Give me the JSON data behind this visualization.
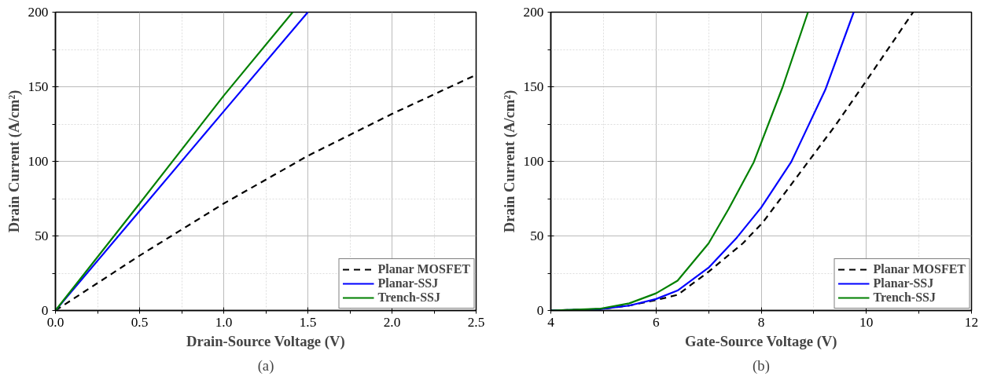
{
  "chart_data": [
    {
      "type": "line",
      "xlabel": "Drain-Source Voltage (V)",
      "ylabel": "Drain Current (A/cm²)",
      "annotations": [
        "(a)"
      ],
      "grid": true,
      "legend": "bottom right",
      "xlim": [
        0,
        2.5
      ],
      "xticks": [
        {
          "value": 0,
          "label": "0.0"
        },
        0.5,
        {
          "value": 1,
          "label": "1.0"
        },
        1.5,
        {
          "value": 2,
          "label": "2.0"
        },
        2.5
      ],
      "ylim": [
        0,
        200
      ],
      "yticks": [
        0,
        50,
        100,
        150,
        200
      ],
      "series": [
        {
          "name": "Planar MOSFET",
          "color": "#000000",
          "line_style": "dashed",
          "x": [
            0,
            0.5,
            1.0,
            1.5,
            2.0,
            2.5
          ],
          "values": [
            0,
            36.8,
            71.7,
            103.7,
            131.8,
            158
          ]
        },
        {
          "name": "Planar-SSJ",
          "color": "#0000ff",
          "line_style": "solid",
          "x": [
            0,
            0.5,
            1.0,
            1.5
          ],
          "values": [
            0,
            66.7,
            133.5,
            200
          ]
        },
        {
          "name": "Trench-SSJ",
          "color": "#008000",
          "line_style": "solid",
          "x": [
            0,
            0.5,
            1.0,
            1.41
          ],
          "values": [
            0,
            71.7,
            144,
            200
          ]
        }
      ]
    },
    {
      "type": "line",
      "xlabel": "Gate-Source Voltage (V)",
      "ylabel": "Drain Current (A/cm²)",
      "annotations": [
        "(b)"
      ],
      "grid": true,
      "legend": "bottom right",
      "xlim": [
        4,
        12
      ],
      "xticks": [
        4,
        6,
        8,
        10,
        12
      ],
      "ylim": [
        0,
        200
      ],
      "yticks": [
        0,
        50,
        100,
        150,
        200
      ],
      "series": [
        {
          "name": "Planar MOSFET",
          "color": "#000000",
          "line_style": "dashed",
          "x": [
            4.0,
            4.95,
            5.49,
            6.0,
            6.41,
            7.0,
            7.65,
            8.03,
            8.89,
            9.43,
            10.0,
            10.89
          ],
          "values": [
            0,
            1.0,
            3.3,
            7,
            10.5,
            26,
            45,
            59,
            99.5,
            125,
            154,
            200
          ]
        },
        {
          "name": "Planar-SSJ",
          "color": "#0000ff",
          "line_style": "solid",
          "x": [
            4.0,
            4.95,
            5.49,
            6.0,
            6.41,
            7.0,
            7.54,
            8.0,
            8.57,
            9.22,
            9.76
          ],
          "values": [
            0,
            1.0,
            3.3,
            7.7,
            13.4,
            28.7,
            49,
            69,
            99.5,
            148,
            200
          ]
        },
        {
          "name": "Trench-SSJ",
          "color": "#008000",
          "line_style": "solid",
          "x": [
            4.0,
            4.95,
            5.49,
            6.0,
            6.41,
            7.0,
            7.38,
            7.86,
            8.41,
            8.89
          ],
          "values": [
            0,
            1.3,
            4.8,
            11.5,
            20,
            45,
            68,
            99.5,
            150,
            200
          ]
        }
      ]
    }
  ]
}
